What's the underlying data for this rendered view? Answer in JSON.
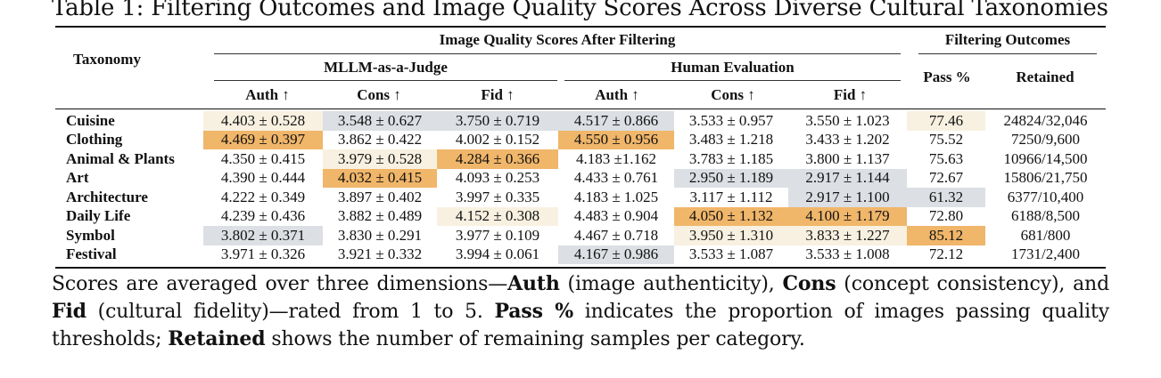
{
  "title": "Table 1: Filtering Outcomes and Image Quality Scores Across Diverse Cultural Taxonomies",
  "header": {
    "taxonomy": "Taxonomy",
    "group_scores": "Image Quality Scores After Filtering",
    "group_outcomes": "Filtering Outcomes",
    "sub_mllm": "MLLM-as-a-Judge",
    "sub_human": "Human Evaluation",
    "col_auth": "Auth ↑",
    "col_cons": "Cons ↑",
    "col_fid": "Fid ↑",
    "col_pass": "Pass %",
    "col_retained": "Retained"
  },
  "colors": {
    "highlight_strong": "#f0b66a",
    "highlight_light": "#f8f1e1",
    "highlight_gray": "#dcdfe3"
  },
  "rows": [
    {
      "taxonomy": "Cuisine",
      "cells": [
        {
          "v": "4.403 ± 0.528",
          "hl": "light"
        },
        {
          "v": "3.548 ± 0.627",
          "hl": "gray"
        },
        {
          "v": "3.750 ± 0.719",
          "hl": "gray"
        },
        {
          "v": "4.517 ± 0.866",
          "hl": "gray"
        },
        {
          "v": "3.533 ± 0.957",
          "hl": ""
        },
        {
          "v": "3.550 ± 1.023",
          "hl": ""
        },
        {
          "v": "77.46",
          "hl": "light"
        },
        {
          "v": "24824/32,046",
          "hl": ""
        }
      ]
    },
    {
      "taxonomy": "Clothing",
      "cells": [
        {
          "v": "4.469 ± 0.397",
          "hl": "strong"
        },
        {
          "v": "3.862 ± 0.422",
          "hl": ""
        },
        {
          "v": "4.002 ± 0.152",
          "hl": ""
        },
        {
          "v": "4.550 ± 0.956",
          "hl": "strong"
        },
        {
          "v": "3.483 ± 1.218",
          "hl": ""
        },
        {
          "v": "3.433 ± 1.202",
          "hl": ""
        },
        {
          "v": "75.52",
          "hl": ""
        },
        {
          "v": "7250/9,600",
          "hl": ""
        }
      ]
    },
    {
      "taxonomy": "Animal & Plants",
      "cells": [
        {
          "v": "4.350 ± 0.415",
          "hl": ""
        },
        {
          "v": "3.979 ± 0.528",
          "hl": "light"
        },
        {
          "v": "4.284 ± 0.366",
          "hl": "strong"
        },
        {
          "v": "4.183 ±1.162",
          "hl": ""
        },
        {
          "v": "3.783 ± 1.185",
          "hl": ""
        },
        {
          "v": "3.800 ± 1.137",
          "hl": ""
        },
        {
          "v": "75.63",
          "hl": ""
        },
        {
          "v": "10966/14,500",
          "hl": ""
        }
      ]
    },
    {
      "taxonomy": "Art",
      "cells": [
        {
          "v": "4.390 ± 0.444",
          "hl": ""
        },
        {
          "v": "4.032 ± 0.415",
          "hl": "strong"
        },
        {
          "v": "4.093 ± 0.253",
          "hl": ""
        },
        {
          "v": "4.433 ± 0.761",
          "hl": ""
        },
        {
          "v": "2.950 ± 1.189",
          "hl": "gray"
        },
        {
          "v": "2.917 ± 1.144",
          "hl": "gray"
        },
        {
          "v": "72.67",
          "hl": ""
        },
        {
          "v": "15806/21,750",
          "hl": ""
        }
      ]
    },
    {
      "taxonomy": "Architecture",
      "cells": [
        {
          "v": "4.222 ± 0.349",
          "hl": ""
        },
        {
          "v": "3.897 ± 0.402",
          "hl": ""
        },
        {
          "v": "3.997 ± 0.335",
          "hl": ""
        },
        {
          "v": "4.183 ± 1.025",
          "hl": ""
        },
        {
          "v": "3.117 ± 1.112",
          "hl": ""
        },
        {
          "v": "2.917 ± 1.100",
          "hl": "gray"
        },
        {
          "v": "61.32",
          "hl": "gray"
        },
        {
          "v": "6377/10,400",
          "hl": ""
        }
      ]
    },
    {
      "taxonomy": "Daily Life",
      "cells": [
        {
          "v": "4.239 ± 0.436",
          "hl": ""
        },
        {
          "v": "3.882 ± 0.489",
          "hl": ""
        },
        {
          "v": "4.152 ± 0.308",
          "hl": "light"
        },
        {
          "v": "4.483 ± 0.904",
          "hl": ""
        },
        {
          "v": "4.050 ± 1.132",
          "hl": "strong"
        },
        {
          "v": "4.100 ± 1.179",
          "hl": "strong"
        },
        {
          "v": "72.80",
          "hl": ""
        },
        {
          "v": "6188/8,500",
          "hl": ""
        }
      ]
    },
    {
      "taxonomy": "Symbol",
      "cells": [
        {
          "v": "3.802 ± 0.371",
          "hl": "gray"
        },
        {
          "v": "3.830 ± 0.291",
          "hl": ""
        },
        {
          "v": "3.977 ± 0.109",
          "hl": ""
        },
        {
          "v": "4.467 ± 0.718",
          "hl": ""
        },
        {
          "v": "3.950 ± 1.310",
          "hl": "light"
        },
        {
          "v": "3.833 ± 1.227",
          "hl": "light"
        },
        {
          "v": "85.12",
          "hl": "strong"
        },
        {
          "v": "681/800",
          "hl": ""
        }
      ]
    },
    {
      "taxonomy": "Festival",
      "cells": [
        {
          "v": "3.971 ± 0.326",
          "hl": ""
        },
        {
          "v": "3.921 ± 0.332",
          "hl": ""
        },
        {
          "v": "3.994 ± 0.061",
          "hl": ""
        },
        {
          "v": "4.167 ± 0.986",
          "hl": "gray"
        },
        {
          "v": "3.533 ± 1.087",
          "hl": ""
        },
        {
          "v": "3.533 ± 1.008",
          "hl": ""
        },
        {
          "v": "72.12",
          "hl": ""
        },
        {
          "v": "1731/2,400",
          "hl": ""
        }
      ]
    }
  ],
  "caption": {
    "t1": "Scores are averaged over three dimensions—",
    "b1": "Auth",
    "t2": " (image authenticity), ",
    "b2": "Cons",
    "t3": " (concept consistency), and ",
    "b3": "Fid",
    "t4": " (cultural fidelity)—rated from 1 to 5. ",
    "b4": "Pass %",
    "t5": " indicates the proportion of images passing quality thresholds; ",
    "b5": "Retained",
    "t6": " shows the number of remaining samples per category."
  }
}
